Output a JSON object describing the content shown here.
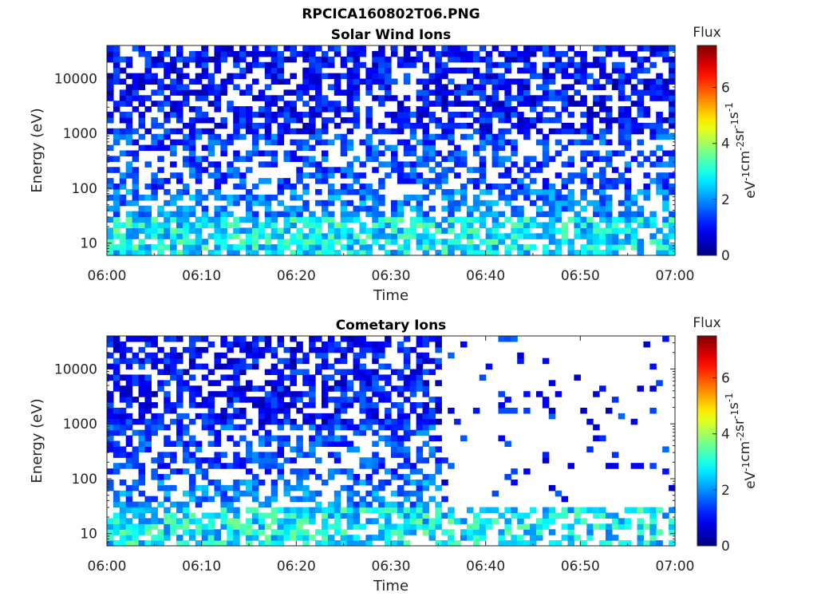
{
  "figure": {
    "title": "RPCICA160802T06.PNG"
  },
  "chart_data": [
    {
      "type": "heatmap",
      "title": "Solar Wind Ions",
      "xlabel": "Time",
      "ylabel": "Energy (eV)",
      "x_ticks": [
        "06:00",
        "06:10",
        "06:20",
        "06:30",
        "06:40",
        "06:50",
        "07:00"
      ],
      "y_ticks": [
        "10",
        "100",
        "1000",
        "10000"
      ],
      "y_scale": "log",
      "ylim": [
        6,
        40000
      ],
      "x_range": [
        "06:00",
        "07:00"
      ],
      "colorbar": {
        "title": "Flux",
        "label": "eV-1cm-2sr-1s-1",
        "label_parts": [
          [
            "eV",
            "-1"
          ],
          [
            "cm",
            "-2"
          ],
          [
            "sr",
            "-1"
          ],
          [
            "s",
            "-1"
          ]
        ],
        "range": [
          0,
          7.5
        ],
        "ticks": [
          "0",
          "2",
          "4",
          "6"
        ],
        "colormap": "jet"
      },
      "pattern": {
        "description_values": "flux mostly 0.5-1.5 above 1000 eV, 2-3.5 at ~800 eV band and below 30 eV",
        "sparse_after": null
      }
    },
    {
      "type": "heatmap",
      "title": "Cometary Ions",
      "xlabel": "Time",
      "ylabel": "Energy (eV)",
      "x_ticks": [
        "06:00",
        "06:10",
        "06:20",
        "06:30",
        "06:40",
        "06:50",
        "07:00"
      ],
      "y_ticks": [
        "10",
        "100",
        "1000",
        "10000"
      ],
      "y_scale": "log",
      "ylim": [
        6,
        40000
      ],
      "x_range": [
        "06:00",
        "07:00"
      ],
      "colorbar": {
        "title": "Flux",
        "label": "eV-1cm-2sr-1s-1",
        "label_parts": [
          [
            "eV",
            "-1"
          ],
          [
            "cm",
            "-2"
          ],
          [
            "sr",
            "-1"
          ],
          [
            "s",
            "-1"
          ]
        ],
        "range": [
          0,
          7.5
        ],
        "ticks": [
          "0",
          "2",
          "4",
          "6"
        ],
        "colormap": "jet"
      },
      "pattern": {
        "description_values": "dense until ~06:35, sparse flux 0.5-1.5 afterwards above 100 eV",
        "sparse_after": "06:35"
      }
    }
  ]
}
